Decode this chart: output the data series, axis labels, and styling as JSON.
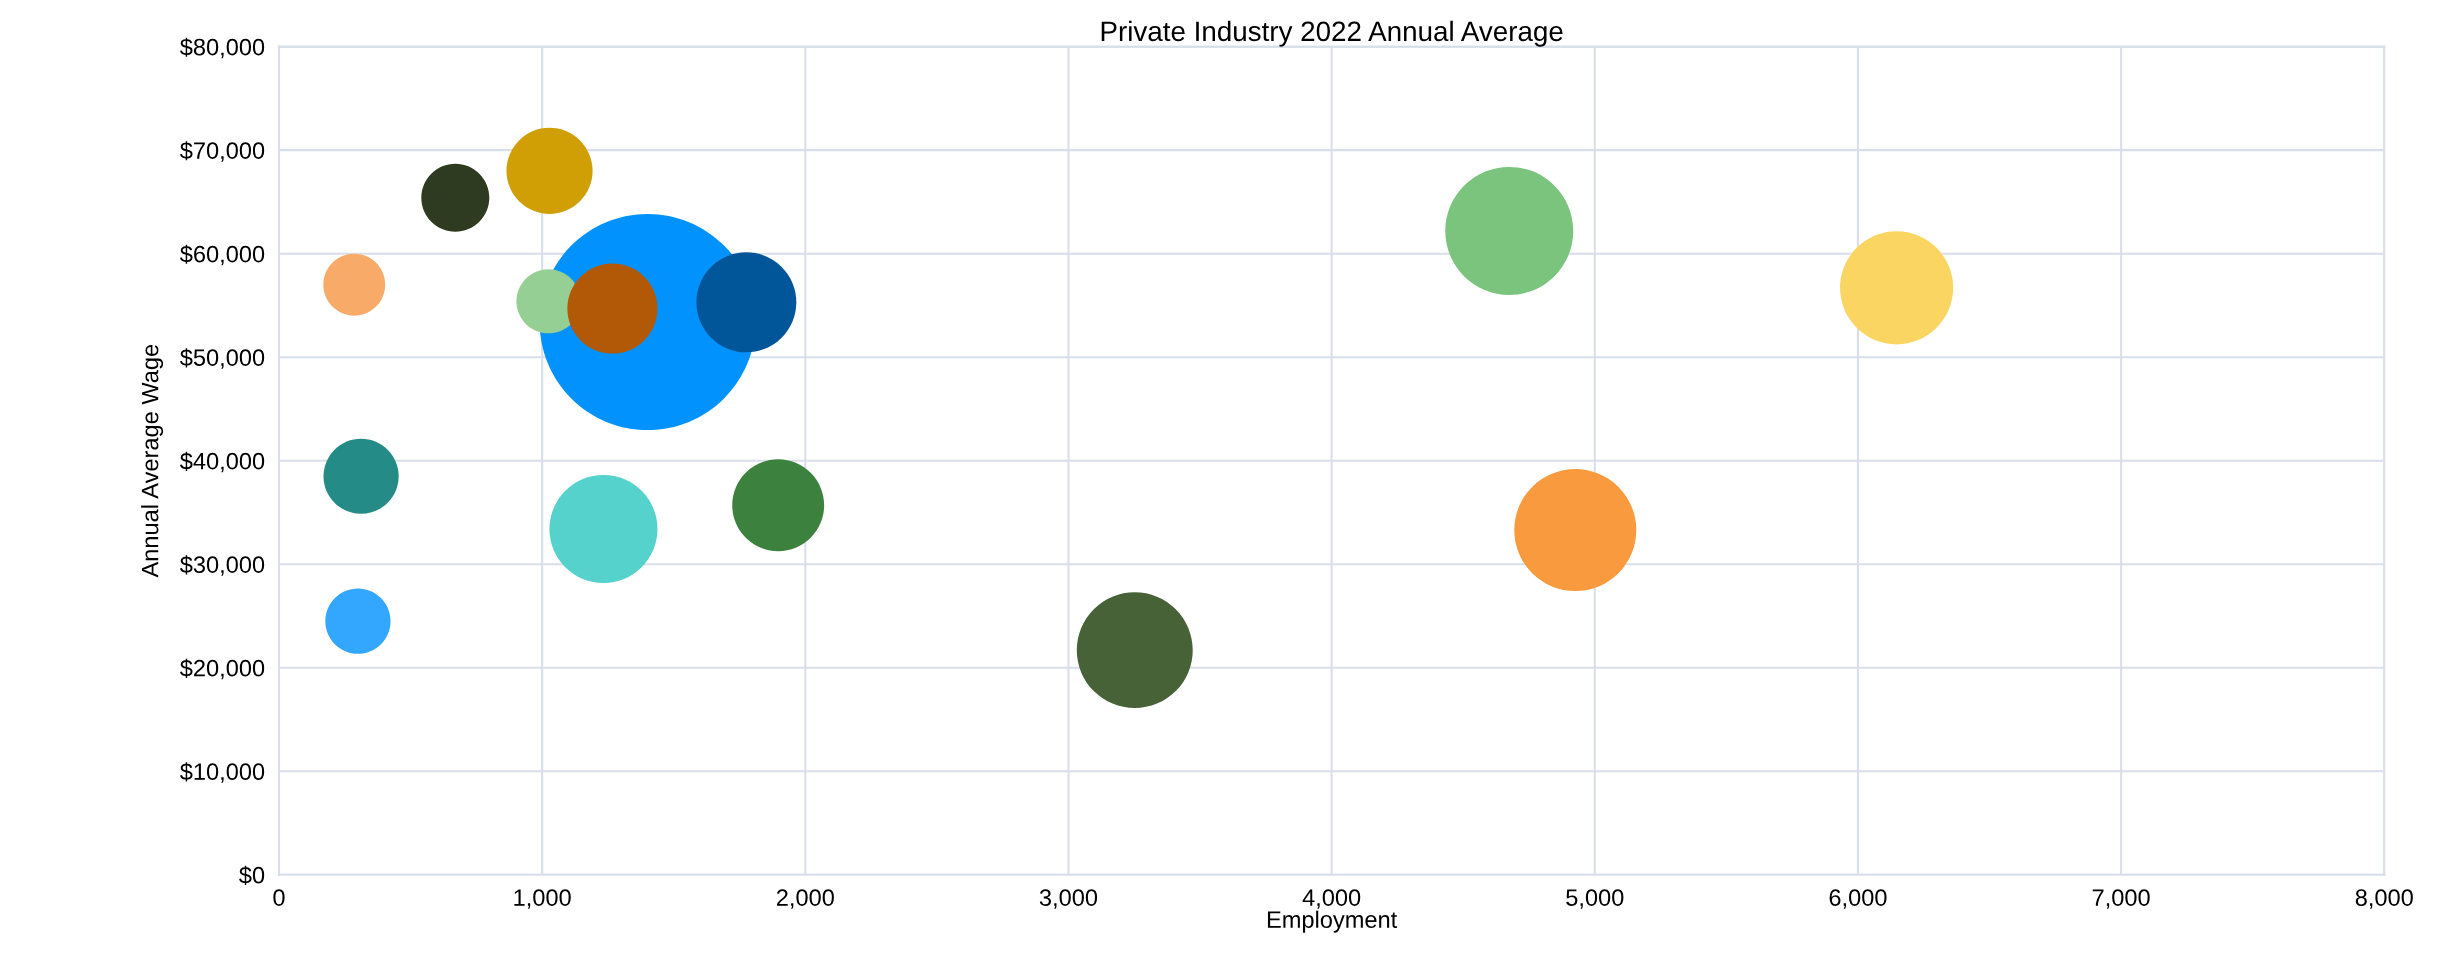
{
  "chart_data": {
    "type": "bubble",
    "title": "Private Industry 2022 Annual Average",
    "xlabel": "Employment",
    "ylabel": "Annual Average Wage",
    "x": [
      1401,
      286,
      670,
      1028,
      1024,
      1267,
      1776,
      312,
      1233,
      1897,
      300,
      6147,
      4675,
      4926,
      3252
    ],
    "values": [
      53400,
      57000,
      65400,
      68000,
      55400,
      54700,
      55300,
      38500,
      33400,
      35700,
      24500,
      56700,
      62200,
      33300,
      21700
    ],
    "sizes": [
      1,
      0.082,
      0.099,
      0.159,
      0.088,
      0.174,
      0.214,
      0.121,
      0.25,
      0.181,
      0.091,
      0.274,
      0.351,
      0.319,
      0.288
    ],
    "colors": [
      "#0192fd",
      "#f8ab68",
      "#2e3b21",
      "#cf9f05",
      "#96cf94",
      "#b25907",
      "#005699",
      "#248b86",
      "#56d2cc",
      "#3c823e",
      "#33a7fe",
      "#fbd562",
      "#7bc47e",
      "#f99a3e",
      "#476237"
    ],
    "xlim": [
      0,
      8000
    ],
    "xticks": [
      {
        "value": 0,
        "label": "0"
      },
      {
        "value": 1000,
        "label": "1,000"
      },
      {
        "value": 2000,
        "label": "2,000"
      },
      {
        "value": 3000,
        "label": "3,000"
      },
      {
        "value": 4000,
        "label": "4,000"
      },
      {
        "value": 5000,
        "label": "5,000"
      },
      {
        "value": 6000,
        "label": "6,000"
      },
      {
        "value": 7000,
        "label": "7,000"
      },
      {
        "value": 8000,
        "label": "8,000"
      }
    ],
    "ylim": [
      0,
      80000
    ],
    "yticks": [
      {
        "value": 0,
        "label": "$0"
      },
      {
        "value": 10000,
        "label": "$10,000"
      },
      {
        "value": 20000,
        "label": "$20,000"
      },
      {
        "value": 30000,
        "label": "$30,000"
      },
      {
        "value": 40000,
        "label": "$40,000"
      },
      {
        "value": 50000,
        "label": "$50,000"
      },
      {
        "value": 60000,
        "label": "$60,000"
      },
      {
        "value": 70000,
        "label": "$70,000"
      },
      {
        "value": 80000,
        "label": "$80,000"
      }
    ],
    "grid": true,
    "marker": "circle"
  }
}
